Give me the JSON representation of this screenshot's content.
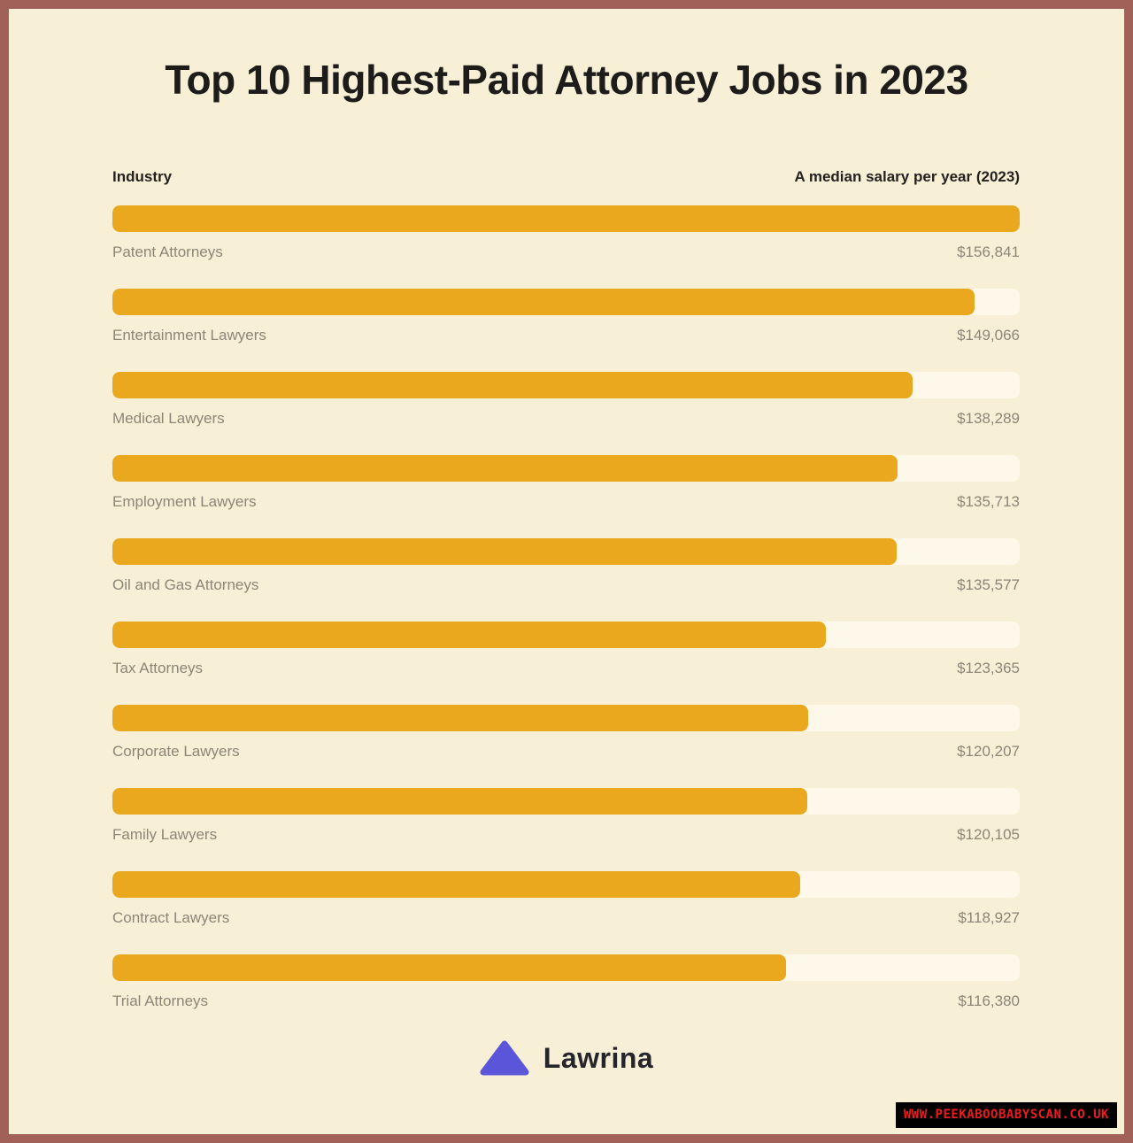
{
  "title": "Top 10 Highest-Paid Attorney Jobs in 2023",
  "columns": {
    "industry": "Industry",
    "salary": "A median salary per year (2023)"
  },
  "chart_data": {
    "type": "bar",
    "orientation": "horizontal",
    "title": "Top 10 Highest-Paid Attorney Jobs in 2023",
    "xlabel": "A median salary per year (2023)",
    "ylabel": "Industry",
    "xlim": [
      0,
      156841
    ],
    "categories": [
      "Patent Attorneys",
      "Entertainment Lawyers",
      "Medical Lawyers",
      "Employment Lawyers",
      "Oil and Gas Attorneys",
      "Tax Attorneys",
      "Corporate Lawyers",
      "Family Lawyers",
      "Contract Lawyers",
      "Trial Attorneys"
    ],
    "values": [
      156841,
      149066,
      138289,
      135713,
      135577,
      123365,
      120207,
      120105,
      118927,
      116380
    ],
    "value_labels": [
      "$156,841",
      "$149,066",
      "$138,289",
      "$135,713",
      "$135,577",
      "$123,365",
      "$120,207",
      "$120,105",
      "$118,927",
      "$116,380"
    ],
    "bar_color": "#e9a81e",
    "track_color": "#fdf8ea",
    "background_color": "#f8efd7",
    "frame_color": "#a26158",
    "grid": false,
    "legend": false
  },
  "footer": {
    "logo_text": "Lawrina",
    "logo_triangle_color": "#5a55d9"
  },
  "watermark": {
    "text": "WWW.PEEKABOOBABYSCAN.CO.UK",
    "text_color": "#ed1c1c",
    "background": "#000000"
  }
}
